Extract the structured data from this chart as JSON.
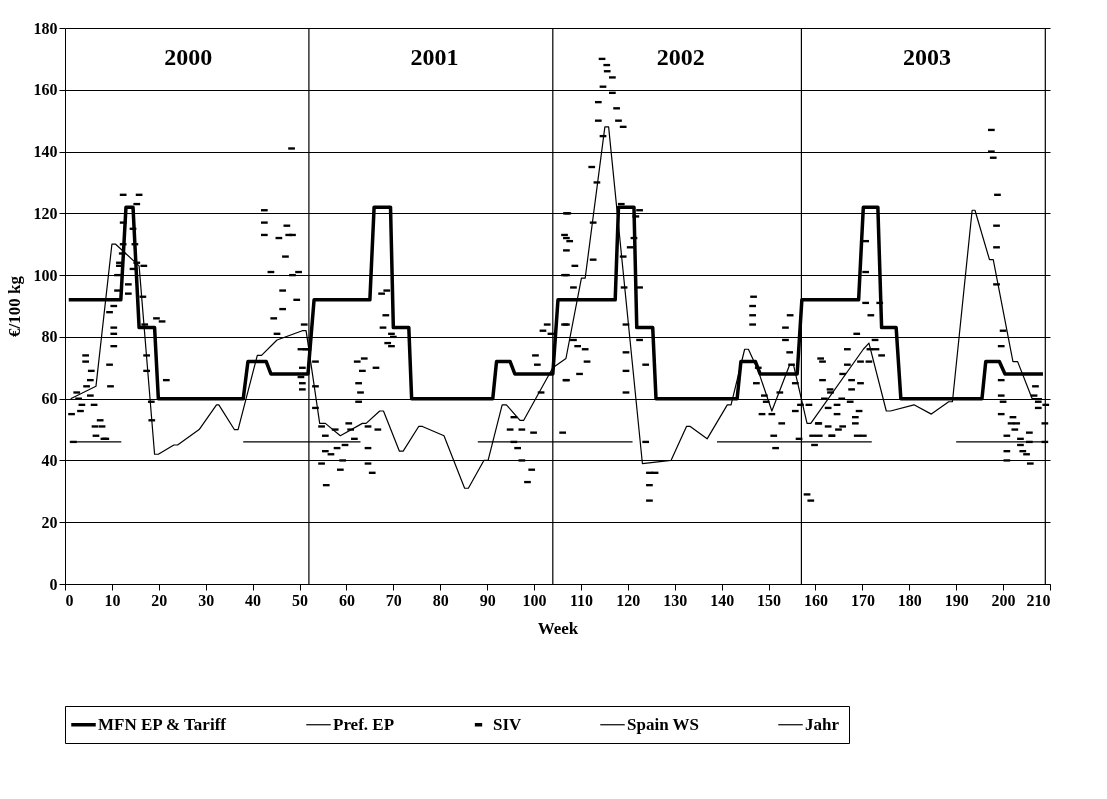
{
  "chart_data": {
    "type": "line",
    "xlabel": "Week",
    "ylabel": "€/100 kg",
    "xlim": [
      0,
      210
    ],
    "xticks": [
      0,
      10,
      20,
      30,
      40,
      50,
      60,
      70,
      80,
      90,
      100,
      110,
      120,
      130,
      140,
      150,
      160,
      170,
      180,
      190,
      200,
      210
    ],
    "ylim": [
      0,
      180
    ],
    "yticks": [
      0,
      20,
      40,
      60,
      80,
      100,
      120,
      140,
      160,
      180
    ],
    "grid": "y",
    "legend": "bottom",
    "line_style": "solid",
    "annotations": [
      "2000",
      "2001",
      "2002",
      "2003"
    ],
    "series": [
      {
        "name": "MFN EP & Tariff",
        "color": "#000000",
        "x": [
          0.8,
          11.9,
          13,
          14.5,
          15.8,
          19.1,
          19.9,
          38,
          39,
          42.9,
          43.9,
          51.8,
          53.1,
          65,
          65.9,
          69.4,
          70,
          73.3,
          73.9,
          91.2,
          92,
          94.9,
          95.9,
          104,
          105.1,
          117.3,
          118,
          121.3,
          121.9,
          125.3,
          126,
          143.3,
          144.1,
          147.2,
          148.2,
          156.1,
          157.1,
          169.2,
          170.2,
          173.3,
          174.1,
          177.2,
          178.2,
          195.5,
          196.3,
          199.2,
          200.4,
          208.5
        ],
        "values": [
          92,
          92,
          122,
          122,
          83,
          83,
          60,
          60,
          72,
          72,
          68,
          68,
          92,
          92,
          122,
          122,
          83,
          83,
          60,
          60,
          72,
          72,
          68,
          68,
          92,
          92,
          122,
          122,
          83,
          83,
          60,
          60,
          72,
          72,
          68,
          68,
          92,
          92,
          122,
          122,
          83,
          83,
          60,
          60,
          72,
          72,
          68,
          68
        ]
      },
      {
        "name": "Pref. EP",
        "color": "#000000",
        "x": [
          1,
          12,
          null,
          38,
          63,
          null,
          88,
          121,
          null,
          139,
          172,
          null,
          190,
          209
        ],
        "values": [
          46,
          46,
          null,
          46,
          46,
          null,
          46,
          46,
          null,
          46,
          46,
          null,
          46,
          46
        ]
      },
      {
        "name": "SIV",
        "color": "#000000",
        "type": "scatter",
        "x": [
          1.8,
          1.4,
          2.5,
          2.9,
          3.3,
          3.6,
          4.4,
          4.4,
          4.6,
          5.4,
          5.6,
          5.4,
          6.2,
          6.4,
          6.6,
          7.5,
          7.9,
          8.3,
          8.7,
          9.7,
          9.5,
          9.5,
          10.4,
          10.4,
          10.4,
          10.4,
          11.2,
          11.2,
          11.6,
          11.6,
          12.2,
          12.4,
          12.4,
          12.4,
          13.5,
          13.5,
          14.5,
          14.5,
          14.9,
          15.3,
          15.8,
          15.3,
          16.8,
          16.6,
          17,
          17.4,
          17.4,
          19.5,
          20.7,
          21.6,
          18.4,
          18.5,
          42.5,
          42.5,
          42.5,
          43.9,
          44.5,
          45.2,
          45.6,
          46.4,
          46.4,
          47,
          47.3,
          47.7,
          48.3,
          48.5,
          49.8,
          49.4,
          48.5,
          50.3,
          50.6,
          50.3,
          50.6,
          50.6,
          51,
          51.4,
          51.8,
          53.4,
          53.4,
          53.4,
          54.7,
          55.5,
          55.5,
          54.7,
          55.7,
          56.7,
          57.6,
          58,
          58.7,
          59.2,
          59.7,
          60.5,
          60.9,
          61.7,
          62.3,
          62.6,
          63,
          62.6,
          63.8,
          63.4,
          64.6,
          64.6,
          64.6,
          65.5,
          66.3,
          66.7,
          67.5,
          68.6,
          68.4,
          67.8,
          68.8,
          69.6,
          70,
          69.6,
          95.7,
          94.9,
          95.7,
          96.5,
          97.4,
          97.4,
          98.6,
          99.5,
          99.9,
          100.3,
          100.7,
          101.5,
          101.9,
          102.8,
          103.6,
          106.9,
          106.9,
          106.9,
          106.9,
          106.9,
          106.9,
          106.1,
          106.5,
          107.2,
          107.6,
          108.7,
          108.4,
          106.5,
          106.5,
          106.8,
          108.4,
          109.3,
          109.7,
          110.9,
          111.3,
          112.6,
          112.6,
          112.3,
          113.4,
          113.7,
          113.7,
          114.7,
          114.7,
          114.5,
          115.5,
          115.6,
          116.7,
          116.7,
          117.6,
          118,
          119,
          118.6,
          119,
          119.2,
          119.6,
          119.6,
          119.6,
          119.6,
          120.5,
          121.3,
          121.7,
          122.5,
          122.5,
          122.5,
          123.8,
          123.8,
          124.6,
          125.8,
          124.6,
          124.6,
          146.8,
          146.6,
          146.6,
          146.6,
          147.8,
          147.4,
          149.1,
          149.5,
          148.6,
          150.7,
          151.1,
          151.5,
          152.4,
          152.8,
          153.6,
          153.6,
          154.6,
          154.5,
          154.9,
          155.7,
          155.7,
          156.5,
          156.8,
          158.2,
          159,
          158.6,
          159.4,
          159.8,
          161.1,
          161.5,
          161.5,
          161.9,
          163.2,
          160.7,
          162.7,
          163.5,
          160.6,
          160.8,
          162.7,
          163.1,
          163.5,
          164.6,
          164.6,
          164.9,
          165.8,
          165.6,
          166.8,
          166.8,
          165.8,
          167.7,
          167.4,
          167.7,
          168.5,
          168.5,
          168.9,
          168.8,
          169.3,
          169.6,
          169.6,
          170.2,
          170.7,
          170.7,
          170.7,
          171.8,
          171.6,
          171.4,
          172.7,
          172.9,
          173.7,
          174.1,
          197.5,
          197.5,
          197.9,
          198.8,
          198.6,
          198.6,
          198.6,
          200,
          199.6,
          199.6,
          199.6,
          200,
          199.6,
          200.8,
          200.8,
          200.8,
          201.7,
          202.1,
          202.5,
          202.9,
          203.7,
          203.7,
          204.2,
          205,
          205.6,
          205.6,
          205.8,
          206.9,
          206.6,
          207.5,
          207.5,
          209.1,
          208.9,
          208.9
        ],
        "values": [
          46,
          55,
          62,
          60,
          56,
          58,
          74,
          72,
          64,
          61,
          69,
          66,
          58,
          51,
          48,
          53,
          51,
          47,
          47,
          64,
          71,
          88,
          81,
          77,
          83,
          90,
          95,
          100,
          103,
          104,
          107,
          110,
          117,
          126,
          97,
          94,
          102,
          115,
          110,
          123,
          126,
          104,
          103,
          93,
          84,
          74,
          69,
          86,
          85,
          66,
          59,
          53,
          121,
          117,
          113,
          101,
          86,
          81,
          112,
          95,
          89,
          106,
          116,
          113,
          141,
          113,
          101,
          92,
          100,
          76,
          70,
          67,
          65,
          63,
          84,
          76,
          76,
          72,
          64,
          57,
          51,
          48,
          43,
          39,
          32,
          42,
          50,
          44,
          37,
          40,
          45,
          52,
          50,
          47,
          72,
          65,
          62,
          59,
          73,
          69,
          51,
          44,
          39,
          36,
          70,
          50,
          94,
          95,
          87,
          83,
          78,
          77,
          80,
          81,
          54,
          50,
          46,
          44,
          50,
          40,
          33,
          37,
          49,
          74,
          71,
          62,
          82,
          84,
          81,
          120,
          112,
          108,
          100,
          84,
          66,
          49,
          113,
          120,
          111,
          103,
          96,
          100,
          84,
          66,
          79,
          77,
          68,
          76,
          72,
          105,
          117,
          135,
          130,
          150,
          156,
          161,
          145,
          170,
          168,
          166,
          164,
          159,
          154,
          150,
          148,
          123,
          106,
          96,
          84,
          75,
          69,
          62,
          109,
          112,
          119,
          121,
          96,
          79,
          71,
          46,
          36,
          36,
          32,
          27,
          93,
          90,
          87,
          84,
          70,
          65,
          61,
          59,
          55,
          55,
          48,
          44,
          62,
          52,
          79,
          83,
          87,
          75,
          71,
          65,
          56,
          47,
          58,
          29,
          27,
          58,
          48,
          45,
          73,
          72,
          66,
          60,
          62,
          52,
          51,
          48,
          52,
          48,
          57,
          63,
          48,
          55,
          58,
          50,
          51,
          60,
          76,
          71,
          68,
          66,
          59,
          63,
          54,
          52,
          48,
          81,
          56,
          65,
          72,
          48,
          111,
          101,
          91,
          87,
          76,
          72,
          79,
          76,
          91,
          74,
          147,
          140,
          138,
          126,
          116,
          109,
          97,
          82,
          77,
          66,
          61,
          59,
          55,
          48,
          43,
          40,
          52,
          54,
          50,
          52,
          47,
          45,
          43,
          42,
          49,
          46,
          39,
          64,
          61,
          59,
          57,
          58,
          52,
          46
        ]
      },
      {
        "name": "Spain WS",
        "color": "#000000",
        "x": [
          1.2,
          6.6,
          10,
          10.8,
          15.8,
          19.1,
          19.9,
          23.2,
          24,
          28.6,
          32.3,
          32.8,
          36.1,
          36.9,
          41,
          41.9,
          45.2,
          50.6,
          51.4,
          54.3,
          55.5,
          58.7,
          63.4,
          64.2,
          67.1,
          67.9,
          71.3,
          72.1,
          75.4,
          76.2,
          80.8,
          85.2,
          86,
          89.3,
          90.2,
          93.2,
          94.1,
          97,
          97.8,
          104,
          106.8,
          110.1,
          110.9,
          115.1,
          115.9,
          123.1,
          129.2,
          132.5,
          133.3,
          136.9,
          141.2,
          142,
          144.9,
          145.7,
          147.8,
          150.7,
          154.5,
          155.3,
          158.2,
          159,
          170.2,
          171.4,
          175.1,
          176,
          181,
          184.7,
          188.4,
          189.2,
          193.4,
          194,
          197.1,
          197.9,
          202.1,
          203.1,
          206.2,
          208.3
        ],
        "values": [
          60,
          64,
          110,
          110,
          103,
          42,
          42,
          45,
          45,
          50,
          58,
          58,
          50,
          50,
          74,
          74,
          79,
          82,
          82,
          52,
          52,
          48,
          52,
          52,
          56,
          56,
          43,
          43,
          51,
          51,
          48,
          31,
          31,
          40,
          40,
          58,
          58,
          53,
          53,
          70,
          73,
          99,
          99,
          148,
          148,
          39,
          40,
          51,
          51,
          47,
          58,
          58,
          76,
          76,
          69,
          56,
          71,
          71,
          52,
          52,
          76,
          78,
          56,
          56,
          58,
          55,
          59,
          59,
          121,
          121,
          105,
          105,
          72,
          72,
          60,
          60
        ]
      },
      {
        "name": "Jahr",
        "color": "#000000",
        "x": [
          52,
          52,
          null,
          104,
          104,
          null,
          157,
          157,
          null,
          209,
          209
        ],
        "values": [
          0,
          180,
          null,
          0,
          180,
          null,
          0,
          180,
          null,
          0,
          180
        ]
      }
    ]
  }
}
